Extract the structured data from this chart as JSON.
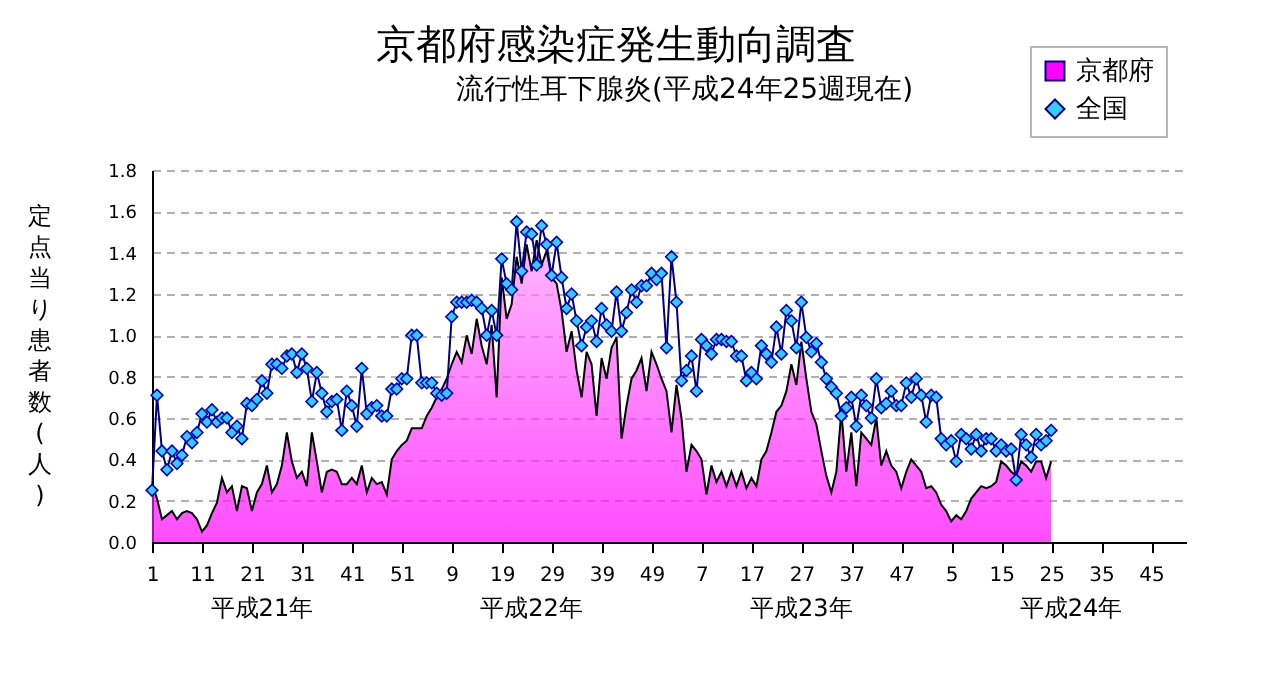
{
  "chart_data": {
    "type": "line",
    "title": "京都府感染症発生動向調査",
    "subtitle": "流行性耳下腺炎(平成24年25週現在)",
    "ylabel": "定点当り患者数(人)",
    "categories": [
      "1",
      null,
      null,
      null,
      null,
      null,
      null,
      null,
      null,
      null,
      "11",
      null,
      null,
      null,
      null,
      null,
      null,
      null,
      null,
      null,
      "21",
      null,
      null,
      null,
      null,
      null,
      null,
      null,
      null,
      null,
      "31",
      null,
      null,
      null,
      null,
      null,
      null,
      null,
      null,
      null,
      "41",
      null,
      null,
      null,
      null,
      null,
      null,
      null,
      null,
      null,
      "51",
      null,
      null,
      null,
      null,
      null,
      null,
      null,
      null,
      null,
      "9",
      null,
      null,
      null,
      null,
      null,
      null,
      null,
      null,
      null,
      "19",
      null,
      null,
      null,
      null,
      null,
      null,
      null,
      null,
      null,
      "29",
      null,
      null,
      null,
      null,
      null,
      null,
      null,
      null,
      null,
      "39",
      null,
      null,
      null,
      null,
      null,
      null,
      null,
      null,
      null,
      "49",
      null,
      null,
      null,
      null,
      null,
      null,
      null,
      null,
      null,
      "7",
      null,
      null,
      null,
      null,
      null,
      null,
      null,
      null,
      null,
      "17",
      null,
      null,
      null,
      null,
      null,
      null,
      null,
      null,
      null,
      "27",
      null,
      null,
      null,
      null,
      null,
      null,
      null,
      null,
      null,
      "37",
      null,
      null,
      null,
      null,
      null,
      null,
      null,
      null,
      null,
      "47",
      null,
      null,
      null,
      null,
      null,
      null,
      null,
      null,
      null,
      "5",
      null,
      null,
      null,
      null,
      null,
      null,
      null,
      null,
      null,
      "15",
      null,
      null,
      null,
      null,
      null,
      null,
      null,
      null,
      null,
      "25",
      null,
      null,
      null,
      null,
      null,
      null,
      null,
      null,
      null,
      "35",
      null,
      null,
      null,
      null,
      null,
      null,
      null,
      null,
      null,
      "45",
      null,
      null,
      null,
      null,
      null,
      null,
      null
    ],
    "series": [
      {
        "name": "京都府",
        "type": "area",
        "color": "#ff00ff",
        "values": [
          0.28,
          0.21,
          0.11,
          0.13,
          0.15,
          0.11,
          0.14,
          0.15,
          0.14,
          0.11,
          0.05,
          0.08,
          0.14,
          0.19,
          0.31,
          0.24,
          0.27,
          0.15,
          0.27,
          0.26,
          0.15,
          0.24,
          0.28,
          0.37,
          0.24,
          0.28,
          0.37,
          0.53,
          0.39,
          0.31,
          0.34,
          0.27,
          0.53,
          0.39,
          0.24,
          0.34,
          0.35,
          0.34,
          0.28,
          0.28,
          0.31,
          0.28,
          0.37,
          0.24,
          0.31,
          0.28,
          0.29,
          0.23,
          0.4,
          0.44,
          0.47,
          0.49,
          0.55,
          0.55,
          0.55,
          0.61,
          0.65,
          0.7,
          0.74,
          0.79,
          0.86,
          0.92,
          0.87,
          1.0,
          0.91,
          1.08,
          0.95,
          0.86,
          1.05,
          0.7,
          1.28,
          1.08,
          1.15,
          1.38,
          1.25,
          1.44,
          1.31,
          1.46,
          1.34,
          1.41,
          1.28,
          1.25,
          1.12,
          0.92,
          1.02,
          0.83,
          0.7,
          0.92,
          0.86,
          0.61,
          0.89,
          0.79,
          0.94,
          0.99,
          0.5,
          0.66,
          0.79,
          0.83,
          0.89,
          0.73,
          0.92,
          0.86,
          0.79,
          0.73,
          0.53,
          0.76,
          0.6,
          0.34,
          0.47,
          0.44,
          0.4,
          0.23,
          0.37,
          0.29,
          0.34,
          0.27,
          0.34,
          0.27,
          0.34,
          0.26,
          0.31,
          0.27,
          0.4,
          0.44,
          0.53,
          0.63,
          0.66,
          0.73,
          0.86,
          0.76,
          0.97,
          0.79,
          0.63,
          0.57,
          0.44,
          0.32,
          0.24,
          0.34,
          0.63,
          0.34,
          0.53,
          0.27,
          0.53,
          0.5,
          0.47,
          0.6,
          0.37,
          0.44,
          0.37,
          0.34,
          0.26,
          0.34,
          0.4,
          0.37,
          0.34,
          0.26,
          0.27,
          0.24,
          0.18,
          0.15,
          0.1,
          0.13,
          0.11,
          0.15,
          0.21,
          0.24,
          0.27,
          0.26,
          0.27,
          0.29,
          0.39,
          0.37,
          0.34,
          0.32,
          0.39,
          0.37,
          0.34,
          0.39,
          0.39,
          0.31,
          0.39,
          null,
          null,
          null,
          null,
          null,
          null,
          null,
          null,
          null,
          null,
          null,
          null,
          null,
          null,
          null,
          null,
          null,
          null,
          null,
          null,
          null,
          null,
          null,
          null,
          null,
          null,
          null
        ]
      },
      {
        "name": "全国",
        "type": "line",
        "marker": "diamond",
        "color": "#33ccff",
        "values": [
          0.25,
          0.71,
          0.44,
          0.35,
          0.44,
          0.38,
          0.42,
          0.51,
          0.48,
          0.53,
          0.62,
          0.58,
          0.64,
          0.58,
          0.6,
          0.6,
          0.53,
          0.56,
          0.5,
          0.67,
          0.66,
          0.69,
          0.78,
          0.72,
          0.86,
          0.86,
          0.84,
          0.9,
          0.91,
          0.82,
          0.91,
          0.84,
          0.68,
          0.82,
          0.72,
          0.63,
          0.68,
          0.69,
          0.54,
          0.73,
          0.66,
          0.56,
          0.84,
          0.62,
          0.65,
          0.66,
          0.61,
          0.61,
          0.74,
          0.74,
          0.79,
          0.79,
          1.0,
          1.0,
          0.77,
          0.77,
          0.77,
          0.72,
          0.71,
          0.72,
          1.09,
          1.16,
          1.16,
          1.16,
          1.17,
          1.16,
          1.13,
          1.0,
          1.12,
          1.0,
          1.37,
          1.25,
          1.22,
          1.55,
          1.31,
          1.5,
          1.49,
          1.34,
          1.53,
          1.44,
          1.29,
          1.45,
          1.28,
          1.13,
          1.2,
          1.07,
          0.95,
          1.04,
          1.07,
          0.97,
          1.13,
          1.05,
          1.02,
          1.21,
          1.02,
          1.11,
          1.22,
          1.16,
          1.24,
          1.24,
          1.3,
          1.27,
          1.3,
          0.94,
          1.38,
          1.16,
          0.78,
          0.83,
          0.9,
          0.73,
          0.98,
          0.95,
          0.91,
          0.98,
          0.98,
          0.97,
          0.97,
          0.9,
          0.9,
          0.78,
          0.82,
          0.79,
          0.95,
          0.91,
          0.87,
          1.04,
          0.91,
          1.12,
          1.07,
          0.94,
          1.16,
          0.99,
          0.92,
          0.96,
          0.87,
          0.79,
          0.75,
          0.72,
          0.61,
          0.65,
          0.7,
          0.56,
          0.71,
          0.66,
          0.6,
          0.79,
          0.65,
          0.67,
          0.73,
          0.66,
          0.66,
          0.77,
          0.7,
          0.79,
          0.71,
          0.58,
          0.71,
          0.7,
          0.5,
          0.47,
          0.49,
          0.39,
          0.52,
          0.5,
          0.45,
          0.52,
          0.44,
          0.5,
          0.5,
          0.44,
          0.47,
          0.44,
          0.45,
          0.3,
          0.52,
          0.47,
          0.41,
          0.52,
          0.47,
          0.49,
          0.54,
          null,
          null,
          null,
          null,
          null,
          null,
          null,
          null,
          null,
          null,
          null,
          null,
          null,
          null,
          null,
          null,
          null,
          null,
          null,
          null,
          null,
          null,
          null,
          null,
          null,
          null,
          null
        ]
      }
    ],
    "line_style": "solid",
    "ylim": [
      0,
      1.8
    ],
    "yticks": [
      {
        "value": 0,
        "label": "0.0"
      },
      0.2,
      0.4,
      0.6,
      0.8,
      {
        "value": 1,
        "label": "1.0"
      },
      1.2,
      1.4,
      1.6,
      1.8
    ],
    "grid": "y",
    "legend": "top right",
    "annotations": [
      "平成21年",
      "平成22年",
      "平成23年",
      "平成24年"
    ]
  }
}
